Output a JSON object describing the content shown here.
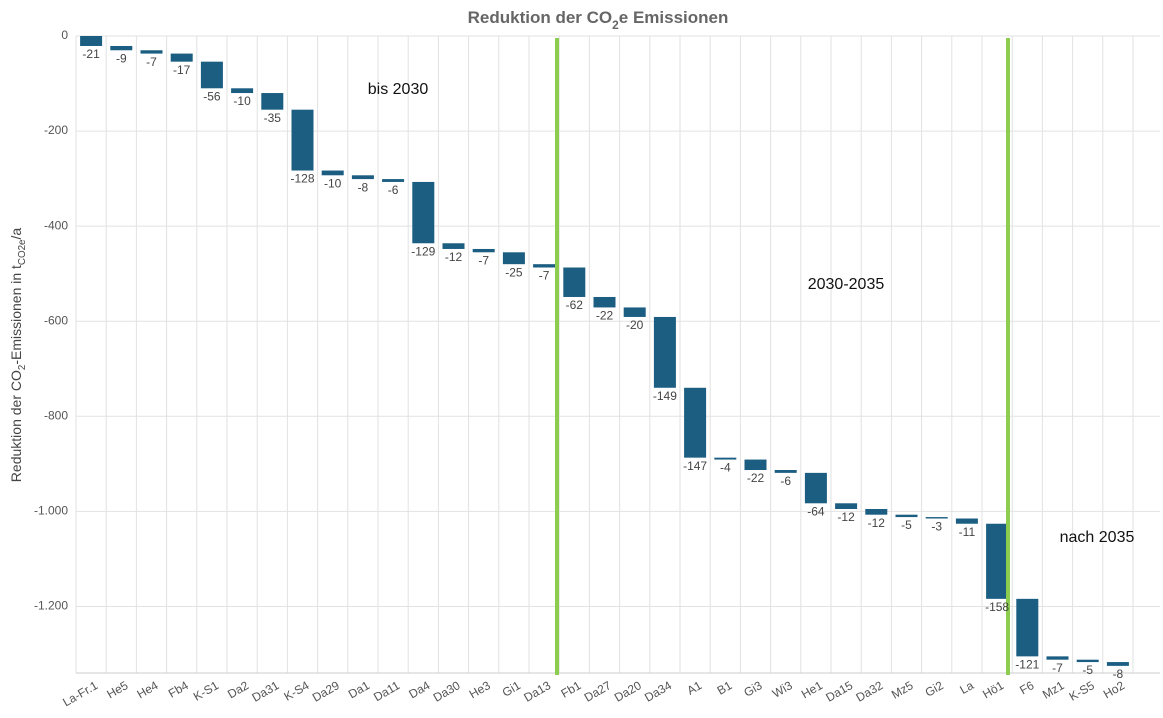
{
  "chart_data": {
    "type": "waterfall",
    "title": [
      "Reduktion der CO",
      "2",
      "e Emissionen"
    ],
    "y_label": [
      "Reduktion der CO",
      "2",
      "-Emissionen in t",
      "CO2e",
      "/a"
    ],
    "categories": [
      "La-Fr.1",
      "He5",
      "He4",
      "Fb4",
      "K-S1",
      "Da2",
      "Da31",
      "K-S4",
      "Da29",
      "Da1",
      "Da11",
      "Da4",
      "Da30",
      "He3",
      "Gi1",
      "Da13",
      "Fb1",
      "Da27",
      "Da20",
      "Da34",
      "A1",
      "B1",
      "Gi3",
      "Wi3",
      "He1",
      "Da15",
      "Da32",
      "Mz5",
      "Gi2",
      "La",
      "Hö1",
      "F6",
      "Mz1",
      "K-S5",
      "Ho2"
    ],
    "values": [
      -21,
      -9,
      -7,
      -17,
      -56,
      -10,
      -35,
      -128,
      -10,
      -8,
      -6,
      -129,
      -12,
      -7,
      -25,
      -7,
      -62,
      -22,
      -20,
      -149,
      -147,
      -4,
      -22,
      -6,
      -64,
      -12,
      -12,
      -5,
      -3,
      -11,
      -158,
      -121,
      -7,
      -5,
      -8
    ],
    "color": "#1b5e82",
    "ylim": [
      -1340,
      0
    ],
    "yticks": [
      0,
      -200,
      -400,
      -600,
      -800,
      {
        "value": -1000,
        "label": "-1.000"
      },
      {
        "value": -1200,
        "label": "-1.200"
      }
    ],
    "grid": true,
    "annotations": [
      "bis 2030",
      "2030-2035",
      "nach 2035"
    ]
  }
}
